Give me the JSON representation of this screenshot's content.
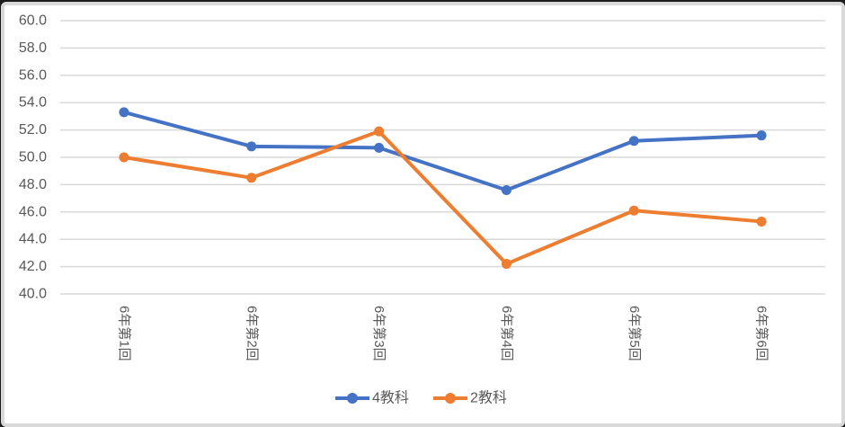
{
  "chart_data": {
    "type": "line",
    "title": "",
    "xlabel": "",
    "ylabel": "",
    "categories": [
      "6年第1回",
      "6年第2回",
      "6年第3回",
      "6年第4回",
      "6年第5回",
      "6年第6回"
    ],
    "series": [
      {
        "name": "4教科",
        "color": "#4472C4",
        "values": [
          53.3,
          50.8,
          50.7,
          47.6,
          51.2,
          51.6
        ]
      },
      {
        "name": "2教科",
        "color": "#ED7D31",
        "values": [
          50.0,
          48.5,
          51.9,
          42.2,
          46.1,
          45.3
        ]
      }
    ],
    "ylim": [
      40.0,
      60.0
    ],
    "ytick_step": 2.0,
    "ytick_labels": [
      "40.0",
      "42.0",
      "44.0",
      "46.0",
      "48.0",
      "50.0",
      "52.0",
      "54.0",
      "56.0",
      "58.0",
      "60.0"
    ],
    "grid": true,
    "legend_position": "bottom-center",
    "x_label_rotation_deg": 90,
    "colors": {
      "gridline": "#D9D9D9",
      "tick_label": "#595959",
      "legend_label": "#595959",
      "plot_background": "#FFFFFF",
      "frame_border": "#D9D9D9"
    }
  }
}
